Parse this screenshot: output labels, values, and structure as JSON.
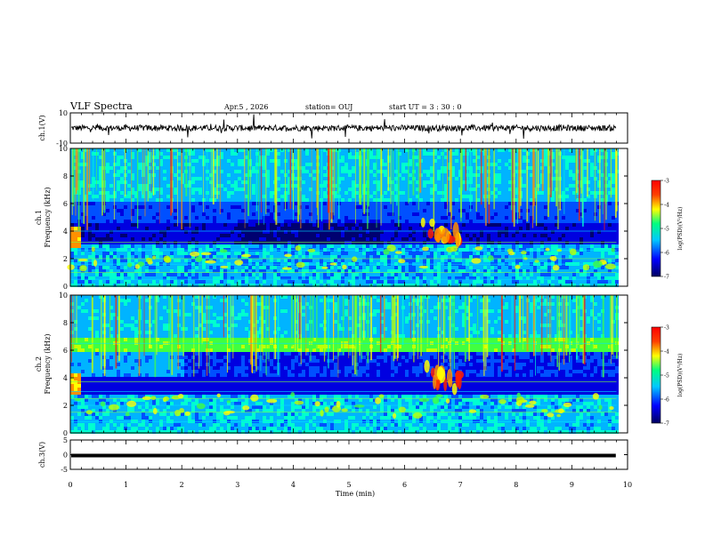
{
  "header": {
    "title": "VLF Spectra",
    "date": "Apr.5 , 2026",
    "station": "station= OUJ",
    "start": "start  UT =  3 : 30 : 0"
  },
  "colors": {
    "colormap": [
      "#00007a",
      "#0000ff",
      "#00c8ff",
      "#00ff80",
      "#ffff00",
      "#ff6000",
      "#ff0000"
    ],
    "trace": "#000000",
    "axis": "#000000"
  },
  "chart_data": [
    {
      "type": "line",
      "name": "ch1-waveform",
      "ylabel": "ch.1(V)",
      "ylim": [
        -10,
        10
      ],
      "yticks": [
        "10",
        "-10"
      ],
      "baseline_v": 0,
      "xlim": [
        0,
        10
      ]
    },
    {
      "type": "heatmap",
      "name": "ch1-spectrogram",
      "ylabel": "ch.1\nFrequency (kHz)",
      "ylim": [
        0,
        10
      ],
      "yticks": [
        "0",
        "2",
        "4",
        "6",
        "8",
        "10"
      ],
      "xlim": [
        0,
        10
      ],
      "data_end_min": 9.8,
      "colorbar": {
        "label": "log(PSD)(V²/Hz)",
        "range": [
          -7,
          -3
        ],
        "ticks": [
          "-3",
          "-4",
          "-5",
          "-6",
          "-7"
        ]
      },
      "bands_khz": [
        0.5,
        1.0,
        1.6,
        2.0,
        2.6,
        3.2,
        4.0
      ],
      "emission_min": [
        6.3,
        7.0
      ]
    },
    {
      "type": "heatmap",
      "name": "ch2-spectrogram",
      "ylabel": "ch.2\nFrequency (kHz)",
      "ylim": [
        0,
        10
      ],
      "yticks": [
        "0",
        "2",
        "4",
        "6",
        "8",
        "10"
      ],
      "xlim": [
        0,
        10
      ],
      "data_end_min": 9.8,
      "colorbar": {
        "label": "log(PSD)(V²/Hz)",
        "range": [
          -7,
          -3
        ],
        "ticks": [
          "-3",
          "-4",
          "-5",
          "-6",
          "-7"
        ]
      },
      "bands_khz": [
        0.8,
        1.5,
        2.0,
        2.5,
        3.0,
        3.7,
        6.5
      ],
      "emission_min": [
        6.3,
        7.0
      ]
    },
    {
      "type": "line",
      "name": "ch3-waveform",
      "ylabel": "ch.3(V)",
      "ylim": [
        -5,
        5
      ],
      "yticks": [
        "5",
        "0",
        "-5"
      ],
      "baseline_v": -0.3,
      "xlim": [
        0,
        10
      ]
    }
  ],
  "xaxis": {
    "label": "Time (min)",
    "ticks": [
      "0",
      "1",
      "2",
      "3",
      "4",
      "5",
      "6",
      "7",
      "8",
      "9",
      "10"
    ]
  }
}
